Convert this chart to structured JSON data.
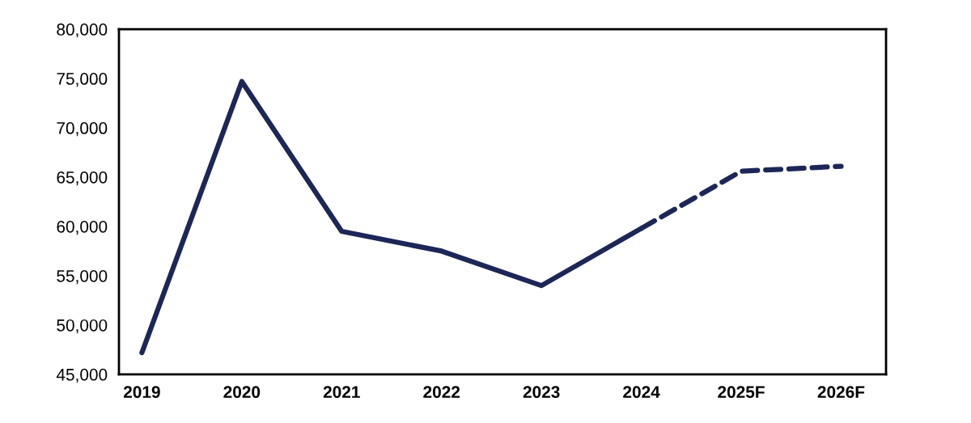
{
  "chart_data": {
    "type": "line",
    "categories": [
      "2019",
      "2020",
      "2021",
      "2022",
      "2023",
      "2024",
      "2025F",
      "2026F"
    ],
    "series": [
      {
        "color": "#1c2757",
        "line_style": "solid",
        "values": [
          47200,
          74700,
          59500,
          57500,
          54000,
          59800,
          null,
          null
        ]
      },
      {
        "color": "#1c2757",
        "line_style": "dashed",
        "values": [
          null,
          null,
          null,
          null,
          null,
          59800,
          65600,
          66100
        ]
      }
    ],
    "ylim": [
      45000,
      80000
    ],
    "yticks": [
      {
        "value": 45000,
        "label": "45,000"
      },
      {
        "value": 50000,
        "label": "50,000"
      },
      {
        "value": 55000,
        "label": "55,000"
      },
      {
        "value": 60000,
        "label": "60,000"
      },
      {
        "value": 65000,
        "label": "65,000"
      },
      {
        "value": 70000,
        "label": "70,000"
      },
      {
        "value": 75000,
        "label": "75,000"
      },
      {
        "value": 80000,
        "label": "80,000"
      }
    ],
    "grid": false,
    "legend": false,
    "marker": "none"
  }
}
